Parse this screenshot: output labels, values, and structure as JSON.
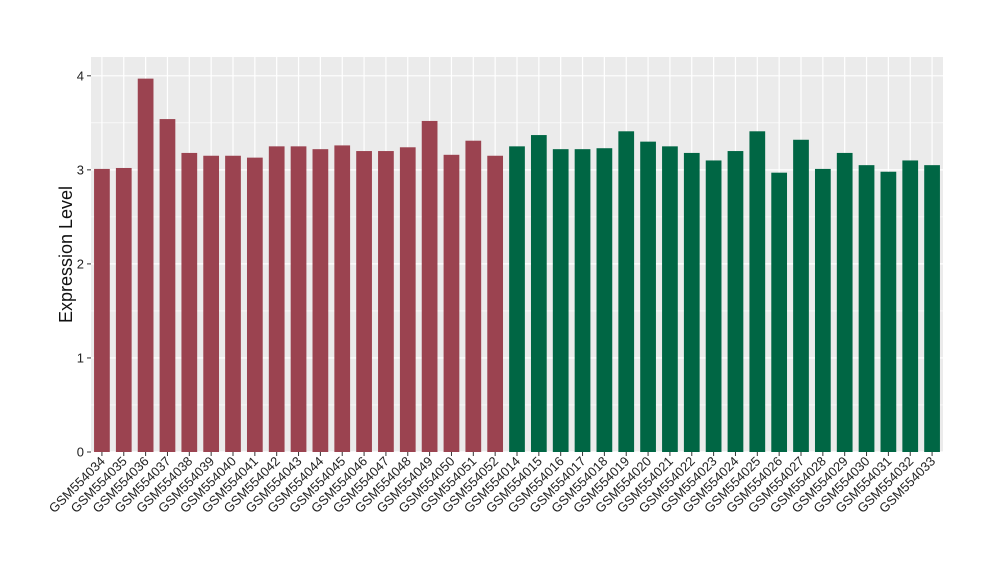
{
  "chart_data": {
    "type": "bar",
    "title": "",
    "xlabel": "",
    "ylabel": "Expression Level",
    "ylim": [
      0,
      4.2
    ],
    "yticks": [
      0,
      1,
      2,
      3,
      4
    ],
    "grid": true,
    "legend": "none",
    "panel_background": "#ebebeb",
    "grid_color": "#ffffff",
    "categories": [
      "GSM554034",
      "GSM554035",
      "GSM554036",
      "GSM554037",
      "GSM554038",
      "GSM554039",
      "GSM554040",
      "GSM554041",
      "GSM554042",
      "GSM554043",
      "GSM554044",
      "GSM554045",
      "GSM554046",
      "GSM554047",
      "GSM554048",
      "GSM554049",
      "GSM554050",
      "GSM554051",
      "GSM554052",
      "GSM554014",
      "GSM554015",
      "GSM554016",
      "GSM554017",
      "GSM554018",
      "GSM554019",
      "GSM554020",
      "GSM554021",
      "GSM554022",
      "GSM554023",
      "GSM554024",
      "GSM554025",
      "GSM554026",
      "GSM554027",
      "GSM554028",
      "GSM554029",
      "GSM554030",
      "GSM554031",
      "GSM554032",
      "GSM554033"
    ],
    "values": [
      3.01,
      3.02,
      3.97,
      3.54,
      3.18,
      3.15,
      3.15,
      3.13,
      3.25,
      3.25,
      3.22,
      3.26,
      3.2,
      3.2,
      3.24,
      3.52,
      3.16,
      3.31,
      3.15,
      3.25,
      3.37,
      3.22,
      3.22,
      3.23,
      3.41,
      3.3,
      3.25,
      3.18,
      3.1,
      3.2,
      3.41,
      2.97,
      3.32,
      3.01,
      3.18,
      3.05,
      2.98,
      3.1,
      3.05
    ],
    "groups": [
      {
        "color": "#9b4350",
        "count": 19
      },
      {
        "color": "#006644",
        "count": 20
      }
    ]
  }
}
